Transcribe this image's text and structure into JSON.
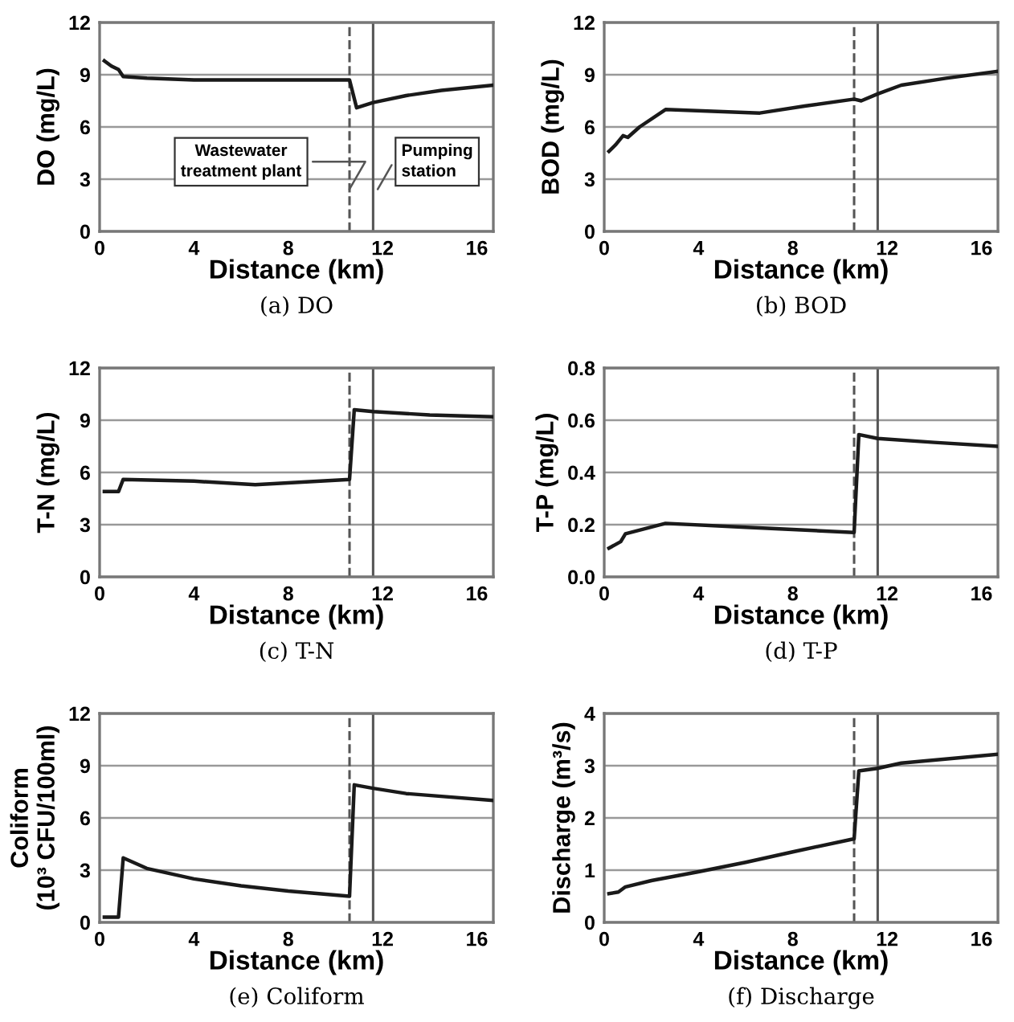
{
  "chart_data": [
    {
      "type": "line",
      "title": "(a) DO",
      "xlabel": "Distance (km)",
      "ylabel": "DO (mg/L)",
      "x": [
        0.2,
        0.5,
        0.8,
        1.0,
        2,
        4,
        8,
        10.6,
        10.9,
        11.6,
        13,
        14.5,
        16.7
      ],
      "series": [
        {
          "color": "#1a1a1a",
          "values": [
            9.8,
            9.5,
            9.3,
            8.9,
            8.8,
            8.7,
            8.7,
            8.7,
            7.1,
            7.4,
            7.8,
            8.1,
            8.4
          ]
        }
      ],
      "xlim": [
        0,
        16.7
      ],
      "xticks": [
        0,
        4,
        8,
        12,
        16
      ],
      "ylim": [
        0,
        12
      ],
      "yticks": [
        0,
        3,
        6,
        9,
        12
      ],
      "grid": "y",
      "ref_lines": [
        {
          "axis": "x",
          "value": 10.6,
          "color": "#555555",
          "line_style": "dashed"
        },
        {
          "axis": "x",
          "value": 11.6,
          "color": "#555555",
          "line_style": "solid"
        }
      ],
      "annotations": [
        {
          "text": "Wastewater\ntreatment plant",
          "x": 10.6,
          "y": 2.2
        },
        {
          "text": "Pumping\nstation",
          "x": 11.6,
          "y": 2.2
        }
      ]
    },
    {
      "type": "line",
      "title": "(b) BOD",
      "xlabel": "Distance (km)",
      "ylabel": "BOD (mg/L)",
      "x": [
        0.2,
        0.5,
        0.8,
        1.0,
        1.5,
        2.6,
        6.6,
        8.5,
        10.6,
        10.9,
        11.6,
        12.6,
        14.5,
        16.7
      ],
      "series": [
        {
          "color": "#1a1a1a",
          "values": [
            4.6,
            5.0,
            5.5,
            5.4,
            6.0,
            7.0,
            6.8,
            7.2,
            7.6,
            7.5,
            7.9,
            8.4,
            8.8,
            9.2
          ]
        }
      ],
      "xlim": [
        0,
        16.7
      ],
      "xticks": [
        0,
        4,
        8,
        12,
        16
      ],
      "ylim": [
        0,
        12
      ],
      "yticks": [
        0,
        3,
        6,
        9,
        12
      ],
      "grid": "y",
      "ref_lines": [
        {
          "axis": "x",
          "value": 10.6,
          "color": "#555555",
          "line_style": "dashed"
        },
        {
          "axis": "x",
          "value": 11.6,
          "color": "#555555",
          "line_style": "solid"
        }
      ]
    },
    {
      "type": "line",
      "title": "(c) T-N",
      "xlabel": "Distance (km)",
      "ylabel": "T-N (mg/L)",
      "x": [
        0.2,
        0.8,
        1.0,
        4,
        6.6,
        10.6,
        10.8,
        11.6,
        14,
        16.7
      ],
      "series": [
        {
          "color": "#1a1a1a",
          "values": [
            4.9,
            4.9,
            5.6,
            5.5,
            5.3,
            5.6,
            9.6,
            9.5,
            9.3,
            9.2
          ]
        }
      ],
      "xlim": [
        0,
        16.7
      ],
      "xticks": [
        0,
        4,
        8,
        12,
        16
      ],
      "ylim": [
        0,
        12
      ],
      "yticks": [
        0,
        3,
        6,
        9,
        12
      ],
      "grid": "y",
      "ref_lines": [
        {
          "axis": "x",
          "value": 10.6,
          "color": "#555555",
          "line_style": "dashed"
        },
        {
          "axis": "x",
          "value": 11.6,
          "color": "#555555",
          "line_style": "solid"
        }
      ]
    },
    {
      "type": "line",
      "title": "(d) T-P",
      "xlabel": "Distance (km)",
      "ylabel": "T-P (mg/L)",
      "x": [
        0.2,
        0.7,
        0.9,
        2.6,
        6,
        10.6,
        10.8,
        11.6,
        14,
        16.7
      ],
      "series": [
        {
          "color": "#1a1a1a",
          "values": [
            0.11,
            0.135,
            0.165,
            0.205,
            0.19,
            0.17,
            0.545,
            0.53,
            0.515,
            0.5
          ]
        }
      ],
      "xlim": [
        0,
        16.7
      ],
      "xticks": [
        0,
        4,
        8,
        12,
        16
      ],
      "ylim": [
        0,
        0.8
      ],
      "yticks": [
        {
          "value": 0,
          "label": "0.0"
        },
        0.2,
        0.4,
        0.6,
        0.8
      ],
      "grid": "y",
      "ref_lines": [
        {
          "axis": "x",
          "value": 10.6,
          "color": "#555555",
          "line_style": "dashed"
        },
        {
          "axis": "x",
          "value": 11.6,
          "color": "#555555",
          "line_style": "solid"
        }
      ]
    },
    {
      "type": "line",
      "title": "(e) Coliform",
      "xlabel": "Distance (km)",
      "ylabel": "Coliform\n(10³ CFU/100ml)",
      "x": [
        0.2,
        0.8,
        1.0,
        2,
        4,
        6,
        8,
        10.6,
        10.8,
        11.6,
        13,
        16.7
      ],
      "series": [
        {
          "color": "#1a1a1a",
          "values": [
            0.3,
            0.3,
            3.7,
            3.1,
            2.5,
            2.1,
            1.8,
            1.5,
            7.9,
            7.7,
            7.4,
            7.0
          ]
        }
      ],
      "xlim": [
        0,
        16.7
      ],
      "xticks": [
        0,
        4,
        8,
        12,
        16
      ],
      "ylim": [
        0,
        12
      ],
      "yticks": [
        0,
        3,
        6,
        9,
        12
      ],
      "grid": "y",
      "ref_lines": [
        {
          "axis": "x",
          "value": 10.6,
          "color": "#555555",
          "line_style": "dashed"
        },
        {
          "axis": "x",
          "value": 11.6,
          "color": "#555555",
          "line_style": "solid"
        }
      ]
    },
    {
      "type": "line",
      "title": "(f) Discharge",
      "xlabel": "Distance (km)",
      "ylabel": "Discharge (m³/s)",
      "x": [
        0.2,
        0.6,
        0.9,
        2,
        4,
        6,
        8,
        10.6,
        10.8,
        11.6,
        12.6,
        16.7
      ],
      "series": [
        {
          "color": "#1a1a1a",
          "values": [
            0.55,
            0.58,
            0.68,
            0.8,
            0.97,
            1.15,
            1.35,
            1.6,
            2.9,
            2.95,
            3.05,
            3.22
          ]
        }
      ],
      "xlim": [
        0,
        16.7
      ],
      "xticks": [
        0,
        4,
        8,
        12,
        16
      ],
      "ylim": [
        0,
        4
      ],
      "yticks": [
        0,
        1,
        2,
        3,
        4
      ],
      "grid": "y",
      "ref_lines": [
        {
          "axis": "x",
          "value": 10.6,
          "color": "#555555",
          "line_style": "dashed"
        },
        {
          "axis": "x",
          "value": 11.6,
          "color": "#555555",
          "line_style": "solid"
        }
      ]
    }
  ]
}
